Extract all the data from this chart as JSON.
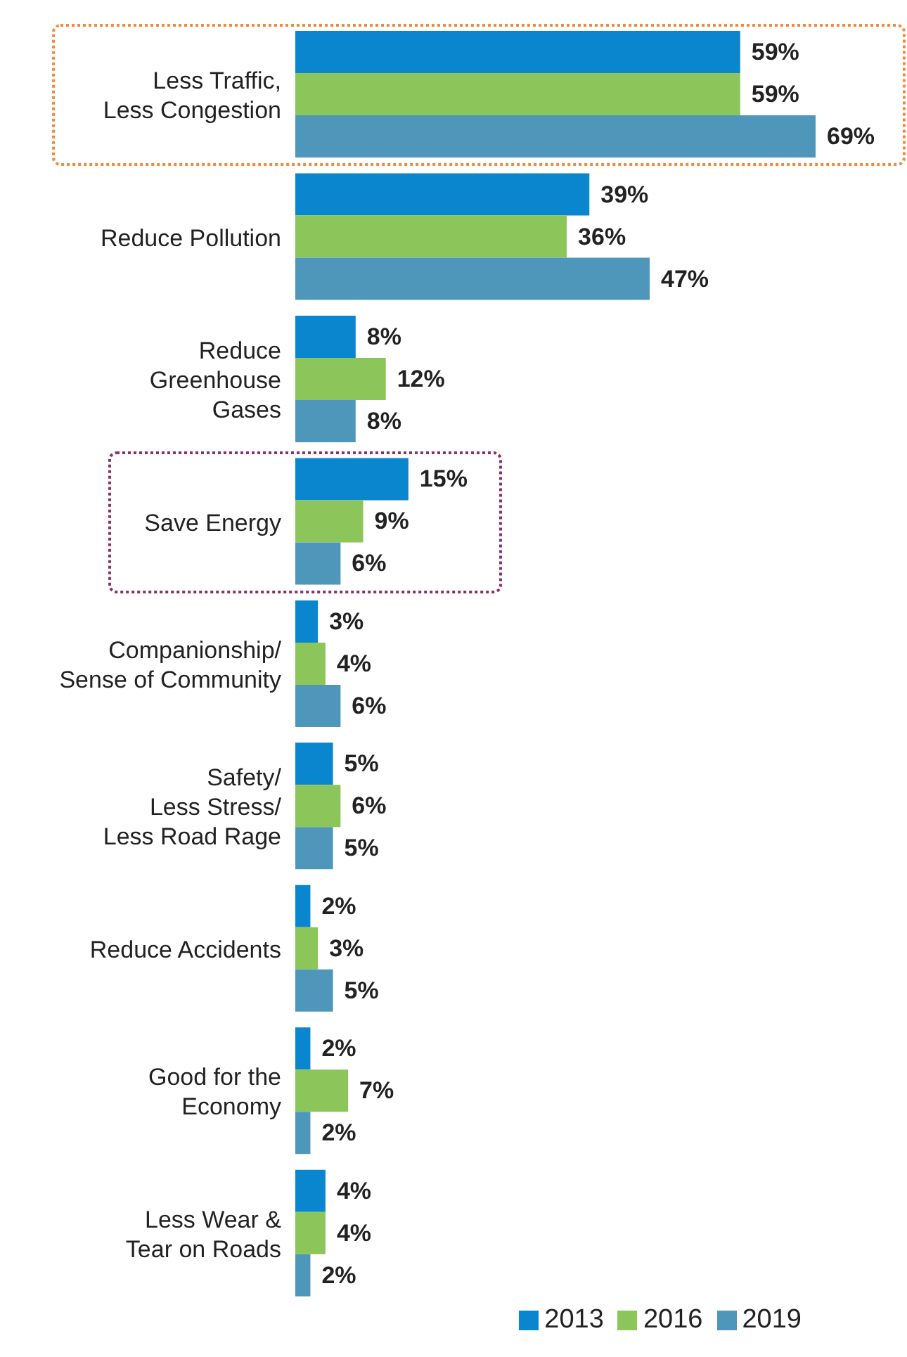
{
  "chart_data": {
    "type": "bar",
    "orientation": "horizontal",
    "categories": [
      "Less Traffic,\nLess Congestion",
      "Reduce Pollution",
      "Reduce\nGreenhouse\nGases",
      "Save Energy",
      "Companionship/\nSense of Community",
      "Safety/\nLess Stress/\nLess Road Rage",
      "Reduce Accidents",
      "Good for the\nEconomy",
      "Less Wear &\nTear on Roads"
    ],
    "series": [
      {
        "name": "2013",
        "color": "#0a86cf",
        "values": [
          59,
          39,
          8,
          15,
          3,
          5,
          2,
          2,
          4
        ],
        "value_labels": [
          "59%",
          "39%",
          "8%",
          "15%",
          "3%",
          "5%",
          "2%",
          "2%",
          "4%"
        ]
      },
      {
        "name": "2016",
        "color": "#8cc65a",
        "values": [
          59,
          36,
          12,
          9,
          4,
          6,
          3,
          7,
          4
        ],
        "value_labels": [
          "59%",
          "36%",
          "12%",
          "9%",
          "4%",
          "6%",
          "3%",
          "7%",
          "4%"
        ]
      },
      {
        "name": "2019",
        "color": "#4f97ba",
        "values": [
          69,
          47,
          8,
          6,
          6,
          5,
          5,
          2,
          2
        ],
        "value_labels": [
          "69%",
          "47%",
          "8%",
          "6%",
          "6%",
          "5%",
          "5%",
          "2%",
          "2%"
        ]
      }
    ],
    "legend": "bottom right"
  }
}
